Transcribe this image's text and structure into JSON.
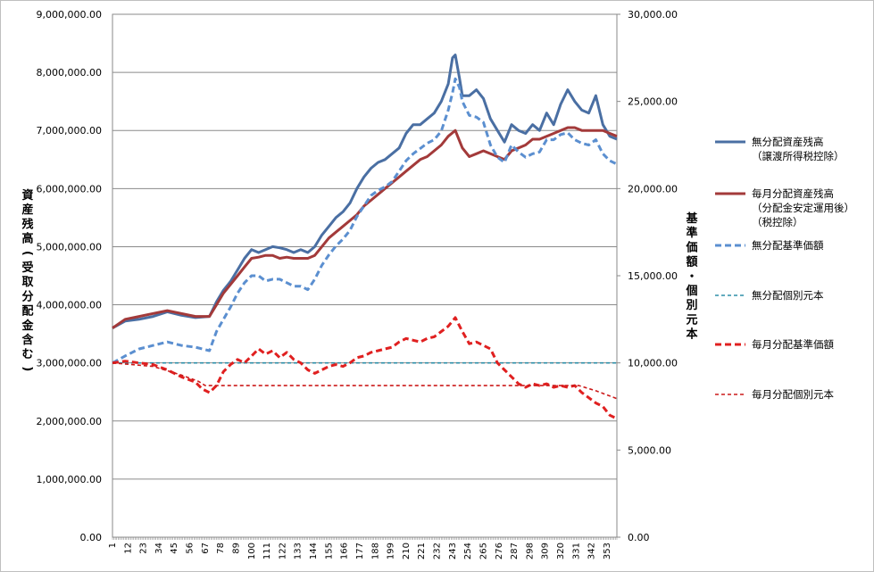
{
  "chart_data": {
    "type": "line",
    "title": "",
    "ylabel": "資産残高(受取分配金含む)",
    "y2label": "基準価額・個別元本",
    "ylim": [
      0,
      9000000
    ],
    "y2lim": [
      0,
      30000
    ],
    "grid": true,
    "legend_position": "right",
    "y_ticks": [
      "0.00",
      "1,000,000.00",
      "2,000,000.00",
      "3,000,000.00",
      "4,000,000.00",
      "5,000,000.00",
      "6,000,000.00",
      "7,000,000.00",
      "8,000,000.00",
      "9,000,000.00"
    ],
    "y2_ticks": [
      "0.00",
      "5,000.00",
      "10,000.00",
      "15,000.00",
      "20,000.00",
      "25,000.00",
      "30,000.00"
    ],
    "x_ticks": [
      "1",
      "12",
      "23",
      "34",
      "45",
      "56",
      "67",
      "78",
      "89",
      "100",
      "111",
      "122",
      "133",
      "144",
      "155",
      "166",
      "177",
      "188",
      "199",
      "210",
      "221",
      "232",
      "243",
      "254",
      "265",
      "276",
      "287",
      "298",
      "309",
      "320",
      "331",
      "342",
      "353"
    ],
    "x_range": [
      1,
      360
    ],
    "series": [
      {
        "name": "無分配資産残高（譲渡所得税控除）",
        "axis": "left",
        "color": "#4a6fa3",
        "style": "solid-thick",
        "x": [
          1,
          10,
          20,
          30,
          40,
          50,
          60,
          70,
          75,
          80,
          85,
          90,
          95,
          100,
          105,
          110,
          115,
          120,
          125,
          130,
          135,
          140,
          145,
          150,
          155,
          160,
          165,
          170,
          175,
          180,
          185,
          190,
          195,
          200,
          205,
          210,
          215,
          220,
          225,
          230,
          235,
          240,
          243,
          245,
          248,
          250,
          255,
          260,
          265,
          270,
          275,
          280,
          285,
          290,
          295,
          300,
          305,
          310,
          315,
          320,
          325,
          330,
          335,
          340,
          345,
          350,
          355,
          360
        ],
        "values": [
          3600000,
          3720000,
          3750000,
          3800000,
          3880000,
          3820000,
          3780000,
          3800000,
          4050000,
          4250000,
          4400000,
          4600000,
          4800000,
          4950000,
          4900000,
          4950000,
          5000000,
          4980000,
          4950000,
          4900000,
          4950000,
          4900000,
          5000000,
          5200000,
          5350000,
          5500000,
          5600000,
          5750000,
          6000000,
          6200000,
          6350000,
          6450000,
          6500000,
          6600000,
          6700000,
          6950000,
          7100000,
          7100000,
          7200000,
          7300000,
          7500000,
          7800000,
          8250000,
          8300000,
          7900000,
          7600000,
          7600000,
          7700000,
          7550000,
          7200000,
          7000000,
          6800000,
          7100000,
          7000000,
          6950000,
          7100000,
          7000000,
          7300000,
          7100000,
          7450000,
          7700000,
          7500000,
          7350000,
          7300000,
          7600000,
          7100000,
          6900000,
          6850000
        ]
      },
      {
        "name": "毎月分配資産残高（分配金安定運用後）（税控除）",
        "axis": "left",
        "color": "#a33a3a",
        "style": "solid-thick",
        "x": [
          1,
          10,
          20,
          30,
          40,
          50,
          60,
          70,
          75,
          80,
          85,
          90,
          95,
          100,
          105,
          110,
          115,
          120,
          125,
          130,
          135,
          140,
          145,
          150,
          155,
          160,
          165,
          170,
          175,
          180,
          185,
          190,
          195,
          200,
          205,
          210,
          215,
          220,
          225,
          230,
          235,
          240,
          245,
          250,
          255,
          260,
          265,
          270,
          275,
          280,
          285,
          290,
          295,
          300,
          305,
          310,
          315,
          320,
          325,
          330,
          335,
          340,
          345,
          350,
          355,
          360
        ],
        "values": [
          3600000,
          3750000,
          3800000,
          3850000,
          3900000,
          3850000,
          3800000,
          3800000,
          4000000,
          4200000,
          4350000,
          4500000,
          4650000,
          4800000,
          4820000,
          4850000,
          4850000,
          4800000,
          4820000,
          4800000,
          4800000,
          4800000,
          4850000,
          5000000,
          5150000,
          5250000,
          5350000,
          5450000,
          5550000,
          5700000,
          5800000,
          5900000,
          6000000,
          6100000,
          6200000,
          6300000,
          6400000,
          6500000,
          6550000,
          6650000,
          6750000,
          6900000,
          7000000,
          6700000,
          6550000,
          6600000,
          6650000,
          6600000,
          6550000,
          6500000,
          6650000,
          6700000,
          6750000,
          6850000,
          6850000,
          6900000,
          6950000,
          7000000,
          7050000,
          7050000,
          7000000,
          7000000,
          7000000,
          7000000,
          6950000,
          6900000
        ]
      },
      {
        "name": "無分配基準価額",
        "axis": "right",
        "color": "#5b8fd0",
        "style": "dashed-thick",
        "x": [
          1,
          10,
          20,
          30,
          40,
          50,
          60,
          70,
          75,
          80,
          85,
          90,
          95,
          100,
          105,
          110,
          115,
          120,
          125,
          130,
          135,
          140,
          145,
          150,
          155,
          160,
          165,
          170,
          175,
          180,
          185,
          190,
          195,
          200,
          205,
          210,
          215,
          220,
          225,
          230,
          235,
          240,
          243,
          245,
          248,
          250,
          255,
          260,
          265,
          270,
          275,
          280,
          285,
          290,
          295,
          300,
          305,
          310,
          315,
          320,
          325,
          330,
          335,
          340,
          345,
          350,
          355,
          360
        ],
        "values": [
          10000,
          10400,
          10800,
          11000,
          11200,
          11000,
          10900,
          10700,
          11800,
          12500,
          13200,
          14000,
          14600,
          15000,
          15000,
          14700,
          14800,
          14800,
          14600,
          14400,
          14400,
          14200,
          14800,
          15600,
          16200,
          16700,
          17100,
          17600,
          18400,
          19000,
          19600,
          19900,
          20100,
          20400,
          21000,
          21600,
          22000,
          22300,
          22600,
          22800,
          23300,
          24500,
          25500,
          26300,
          25800,
          25000,
          24200,
          24100,
          23800,
          22500,
          21800,
          21500,
          22500,
          22100,
          21800,
          22000,
          22100,
          22800,
          22800,
          23100,
          23200,
          22800,
          22600,
          22500,
          22800,
          22000,
          21600,
          21400
        ]
      },
      {
        "name": "無分配個別元本",
        "axis": "right",
        "color": "#2e8fa8",
        "style": "dashed-thin",
        "x": [
          1,
          360
        ],
        "values": [
          10000,
          10000
        ]
      },
      {
        "name": "毎月分配基準価額",
        "axis": "right",
        "color": "#e02020",
        "style": "dashed-thick",
        "x": [
          1,
          10,
          20,
          30,
          40,
          50,
          60,
          65,
          70,
          75,
          80,
          85,
          90,
          95,
          100,
          105,
          110,
          115,
          120,
          125,
          130,
          135,
          140,
          145,
          150,
          155,
          160,
          165,
          170,
          175,
          180,
          185,
          190,
          195,
          200,
          205,
          210,
          215,
          220,
          225,
          230,
          235,
          240,
          245,
          250,
          255,
          260,
          265,
          270,
          275,
          280,
          285,
          290,
          295,
          300,
          305,
          310,
          315,
          320,
          325,
          330,
          335,
          340,
          345,
          350,
          355,
          360
        ],
        "values": [
          10000,
          10100,
          10000,
          9900,
          9600,
          9200,
          8900,
          8500,
          8300,
          8700,
          9500,
          9900,
          10200,
          10000,
          10400,
          10800,
          10500,
          10700,
          10300,
          10600,
          10200,
          10000,
          9600,
          9400,
          9600,
          9800,
          9900,
          9800,
          10000,
          10300,
          10400,
          10600,
          10700,
          10800,
          10900,
          11200,
          11400,
          11300,
          11200,
          11400,
          11500,
          11800,
          12100,
          12600,
          11800,
          11100,
          11200,
          11000,
          10800,
          10000,
          9600,
          9200,
          8800,
          8600,
          8800,
          8700,
          8800,
          8600,
          8700,
          8600,
          8700,
          8300,
          8000,
          7700,
          7500,
          7000,
          6800
        ]
      },
      {
        "name": "毎月分配個別元本",
        "axis": "right",
        "color": "#cc1a1a",
        "style": "dashed-thin",
        "x": [
          1,
          30,
          50,
          62,
          67,
          100,
          150,
          200,
          250,
          300,
          333,
          345,
          360
        ],
        "values": [
          10000,
          9800,
          9300,
          8950,
          8700,
          8700,
          8700,
          8700,
          8700,
          8700,
          8700,
          8400,
          7950
        ]
      }
    ]
  }
}
